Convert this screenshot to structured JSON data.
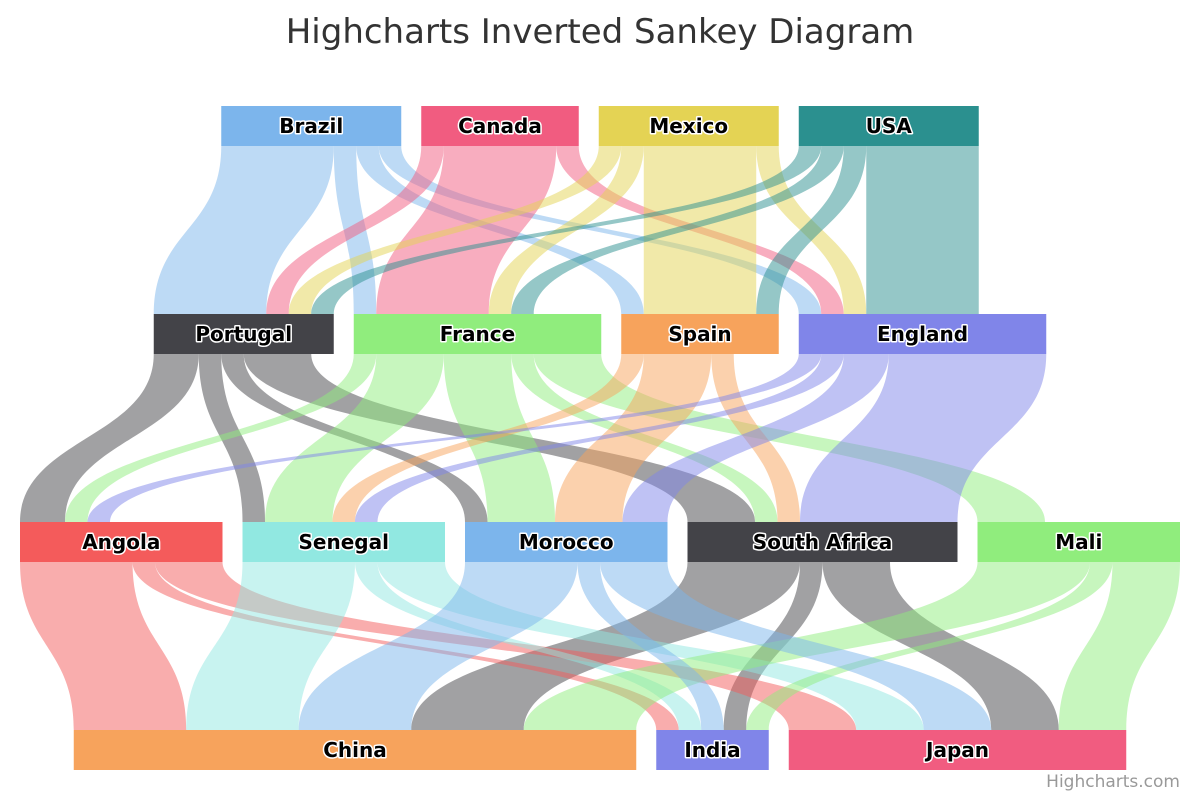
{
  "title": "Highcharts Inverted Sankey Diagram",
  "credit": "Highcharts.com",
  "chart_data": {
    "type": "sankey",
    "inverted": true,
    "title": "Highcharts Inverted Sankey Diagram",
    "levels": [
      [
        "Brazil",
        "Canada",
        "Mexico",
        "USA"
      ],
      [
        "Portugal",
        "France",
        "Spain",
        "England"
      ],
      [
        "Angola",
        "Senegal",
        "Morocco",
        "South Africa",
        "Mali"
      ],
      [
        "China",
        "India",
        "Japan"
      ]
    ],
    "node_colors": {
      "Brazil": "#7cb5ec",
      "Canada": "#f15c80",
      "Mexico": "#e4d354",
      "USA": "#2b908f",
      "Portugal": "#434348",
      "France": "#90ed7d",
      "Spain": "#f7a35c",
      "England": "#8085e9",
      "Angola": "#f45b5b",
      "Senegal": "#91e8e1",
      "Morocco": "#7cb5ec",
      "South Africa": "#434348",
      "Mali": "#90ed7d",
      "China": "#f7a35c",
      "India": "#8085e9",
      "Japan": "#f15c80"
    },
    "links": [
      {
        "from": "Brazil",
        "to": "Portugal",
        "weight": 5
      },
      {
        "from": "Brazil",
        "to": "France",
        "weight": 1
      },
      {
        "from": "Brazil",
        "to": "Spain",
        "weight": 1
      },
      {
        "from": "Brazil",
        "to": "England",
        "weight": 1
      },
      {
        "from": "Canada",
        "to": "Portugal",
        "weight": 1
      },
      {
        "from": "Canada",
        "to": "France",
        "weight": 5
      },
      {
        "from": "Canada",
        "to": "England",
        "weight": 1
      },
      {
        "from": "Mexico",
        "to": "Portugal",
        "weight": 1
      },
      {
        "from": "Mexico",
        "to": "France",
        "weight": 1
      },
      {
        "from": "Mexico",
        "to": "Spain",
        "weight": 5
      },
      {
        "from": "Mexico",
        "to": "England",
        "weight": 1
      },
      {
        "from": "USA",
        "to": "Portugal",
        "weight": 1
      },
      {
        "from": "USA",
        "to": "France",
        "weight": 1
      },
      {
        "from": "USA",
        "to": "Spain",
        "weight": 1
      },
      {
        "from": "USA",
        "to": "England",
        "weight": 5
      },
      {
        "from": "Portugal",
        "to": "Angola",
        "weight": 2
      },
      {
        "from": "Portugal",
        "to": "Senegal",
        "weight": 1
      },
      {
        "from": "Portugal",
        "to": "Morocco",
        "weight": 1
      },
      {
        "from": "Portugal",
        "to": "South Africa",
        "weight": 3
      },
      {
        "from": "France",
        "to": "Angola",
        "weight": 1
      },
      {
        "from": "France",
        "to": "Senegal",
        "weight": 3
      },
      {
        "from": "France",
        "to": "Mali",
        "weight": 3
      },
      {
        "from": "France",
        "to": "Morocco",
        "weight": 3
      },
      {
        "from": "France",
        "to": "South Africa",
        "weight": 1
      },
      {
        "from": "Spain",
        "to": "Senegal",
        "weight": 1
      },
      {
        "from": "Spain",
        "to": "Morocco",
        "weight": 3
      },
      {
        "from": "Spain",
        "to": "South Africa",
        "weight": 1
      },
      {
        "from": "England",
        "to": "Angola",
        "weight": 1
      },
      {
        "from": "England",
        "to": "Senegal",
        "weight": 1
      },
      {
        "from": "England",
        "to": "Morocco",
        "weight": 2
      },
      {
        "from": "England",
        "to": "South Africa",
        "weight": 7
      },
      {
        "from": "South Africa",
        "to": "China",
        "weight": 5
      },
      {
        "from": "South Africa",
        "to": "India",
        "weight": 1
      },
      {
        "from": "South Africa",
        "to": "Japan",
        "weight": 3
      },
      {
        "from": "Angola",
        "to": "China",
        "weight": 5
      },
      {
        "from": "Angola",
        "to": "India",
        "weight": 1
      },
      {
        "from": "Angola",
        "to": "Japan",
        "weight": 3
      },
      {
        "from": "Senegal",
        "to": "China",
        "weight": 5
      },
      {
        "from": "Senegal",
        "to": "India",
        "weight": 1
      },
      {
        "from": "Senegal",
        "to": "Japan",
        "weight": 3
      },
      {
        "from": "Mali",
        "to": "China",
        "weight": 5
      },
      {
        "from": "Mali",
        "to": "India",
        "weight": 1
      },
      {
        "from": "Mali",
        "to": "Japan",
        "weight": 3
      },
      {
        "from": "Morocco",
        "to": "China",
        "weight": 5
      },
      {
        "from": "Morocco",
        "to": "India",
        "weight": 1
      },
      {
        "from": "Morocco",
        "to": "Japan",
        "weight": 3
      }
    ]
  }
}
